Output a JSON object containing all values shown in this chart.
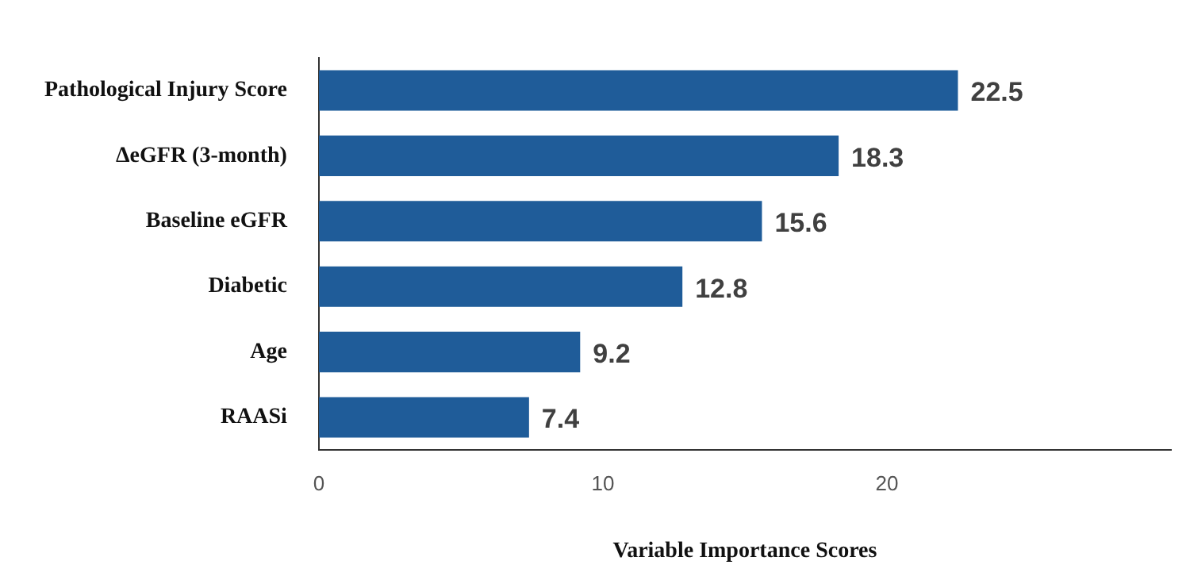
{
  "chart_data": {
    "type": "bar",
    "orientation": "horizontal",
    "xlabel": "Variable Importance Scores",
    "categories": [
      "Pathological Injury Score",
      "ΔeGFR (3-month)",
      "Baseline eGFR",
      "Diabetic",
      "Age",
      "RAASi"
    ],
    "values": [
      22.5,
      18.3,
      15.6,
      12.8,
      9.2,
      7.4
    ],
    "color": "#1f5c99",
    "xlim": [
      0,
      30
    ],
    "xticks": [
      0,
      10,
      20
    ],
    "grid": false,
    "legend": false,
    "data_labels": true
  }
}
